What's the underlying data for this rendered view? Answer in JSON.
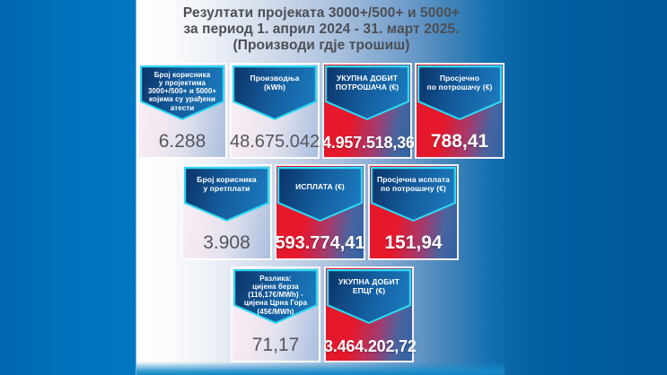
{
  "title": {
    "text": "Резултати пројеката 3000+/500+ и 5000+\nза период 1. април 2024 - 31. март 2025.\n(Производи гдје трошиш)"
  },
  "colors": {
    "bg_left_blue": "#0075bf",
    "bg_right_blue": "#005c9d",
    "accent_cyan": "#2ed9f2",
    "banner_navy": "#0c3468",
    "banner_blue": "#1c7dc0",
    "card_red": "#e6182c",
    "card_blue": "#2f63a3",
    "value_gray": "#55565b",
    "title_gray": "#4c4e55"
  },
  "rows": [
    {
      "cards": [
        {
          "header": "Број корисника\nу пројектима\n3000+/500+ и 5000+\nкојима су урађени\nатести",
          "value": "6.288",
          "variant": "light"
        },
        {
          "header": "Производња\n(kWh)",
          "value": "48.675.042",
          "variant": "light"
        },
        {
          "header": "УКУПНА ДОБИТ\nПОТРОШАЧА (€)",
          "value": "4.957.518,36",
          "variant": "red"
        },
        {
          "header": "Просјечно\nпо потрошачу (€)",
          "value": "788,41",
          "variant": "red"
        }
      ]
    },
    {
      "cards": [
        {
          "header": "Број корисника\nу претплати",
          "value": "3.908",
          "variant": "light"
        },
        {
          "header": "ИСПЛАТА (€)",
          "value": "593.774,41",
          "variant": "red"
        },
        {
          "header": "Просјечна исплата\nпо потрошачу (€)",
          "value": "151,94",
          "variant": "red"
        }
      ]
    },
    {
      "cards": [
        {
          "header": "Разлика:\nцијена берза\n(116,17€/MWh) -\nцијена Црна Гора\n(45€/MWh)",
          "value": "71,17",
          "variant": "light"
        },
        {
          "header": "УКУПНА ДОБИТ\nЕПЦГ (€)",
          "value": "3.464.202,72",
          "variant": "red"
        }
      ]
    }
  ],
  "chart_data": {
    "type": "table",
    "title": "Резултати пројеката 3000+/500+ и 5000+ за период 1. април 2024 - 31. март 2025. (Производи гдје трошиш)",
    "metrics": [
      {
        "label": "Број корисника у пројектима 3000+/500+ и 5000+ којима су урађени атести",
        "value": 6288,
        "display": "6.288"
      },
      {
        "label": "Производња (kWh)",
        "value": 48675042,
        "display": "48.675.042"
      },
      {
        "label": "УКУПНА ДОБИТ ПОТРОШАЧА (€)",
        "value": 4957518.36,
        "display": "4.957.518,36"
      },
      {
        "label": "Просјечно по потрошачу (€)",
        "value": 788.41,
        "display": "788,41"
      },
      {
        "label": "Број корисника у претплати",
        "value": 3908,
        "display": "3.908"
      },
      {
        "label": "ИСПЛАТА (€)",
        "value": 593774.41,
        "display": "593.774,41"
      },
      {
        "label": "Просјечна исплата по потрошачу (€)",
        "value": 151.94,
        "display": "151,94"
      },
      {
        "label": "Разлика: цијена берза (116,17€/MWh) - цијена Црна Гора (45€/MWh)",
        "value": 71.17,
        "display": "71,17"
      },
      {
        "label": "УКУПНА ДОБИТ ЕПЦГ (€)",
        "value": 3464202.72,
        "display": "3.464.202,72"
      }
    ]
  }
}
